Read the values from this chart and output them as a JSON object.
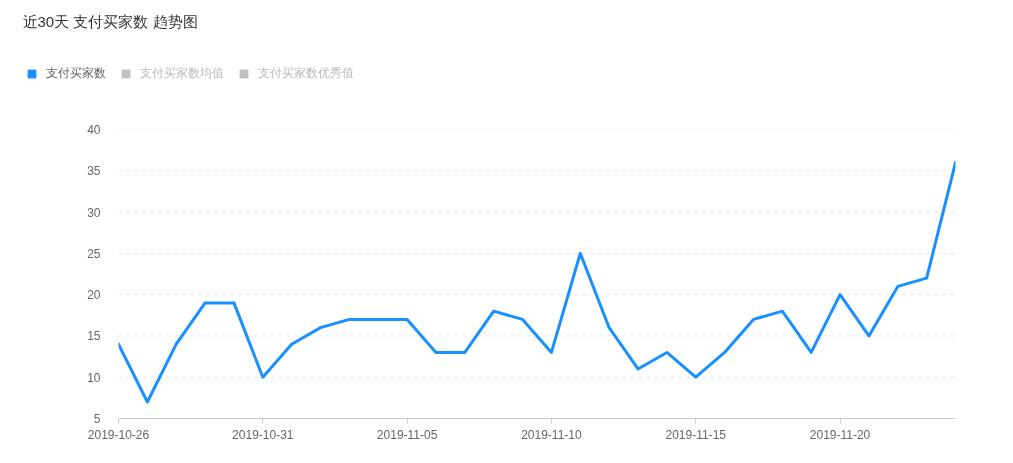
{
  "chart_data": {
    "type": "line",
    "title": "近30天 支付买家数 趋势图",
    "x": [
      "2019-10-26",
      "2019-10-27",
      "2019-10-28",
      "2019-10-29",
      "2019-10-30",
      "2019-10-31",
      "2019-11-01",
      "2019-11-02",
      "2019-11-03",
      "2019-11-04",
      "2019-11-05",
      "2019-11-06",
      "2019-11-07",
      "2019-11-08",
      "2019-11-09",
      "2019-11-10",
      "2019-11-11",
      "2019-11-12",
      "2019-11-13",
      "2019-11-14",
      "2019-11-15",
      "2019-11-16",
      "2019-11-17",
      "2019-11-18",
      "2019-11-19",
      "2019-11-20",
      "2019-11-21",
      "2019-11-22",
      "2019-11-23",
      "2019-11-24"
    ],
    "series": [
      {
        "name": "支付买家数",
        "color": "#1890ff",
        "values": [
          14,
          7,
          14,
          19,
          19,
          10,
          14,
          16,
          17,
          17,
          17,
          13,
          13,
          18,
          17,
          13,
          25,
          16,
          11,
          13,
          10,
          13,
          17,
          18,
          13,
          20,
          15,
          21,
          22,
          36
        ]
      },
      {
        "name": "支付买家数均值",
        "color": "#c0c0c0",
        "values": [
          null,
          null,
          null,
          null,
          null,
          null,
          null,
          null,
          null,
          null,
          null,
          null,
          null,
          null,
          null,
          null,
          null,
          null,
          null,
          null,
          null,
          null,
          null,
          null,
          null,
          null,
          null,
          null,
          null,
          null
        ]
      },
      {
        "name": "支付买家数优秀值",
        "color": "#c0c0c0",
        "values": [
          null,
          null,
          null,
          null,
          null,
          null,
          null,
          null,
          null,
          null,
          null,
          null,
          null,
          null,
          null,
          null,
          null,
          null,
          null,
          null,
          null,
          null,
          null,
          null,
          null,
          null,
          null,
          null,
          null,
          null
        ]
      }
    ],
    "xlim": [
      "2019-10-26",
      "2019-11-24"
    ],
    "xticks": [
      "2019-10-26",
      "2019-10-31",
      "2019-11-05",
      "2019-11-10",
      "2019-11-15",
      "2019-11-20"
    ],
    "ylim": [
      5,
      40
    ],
    "yticks": [
      5,
      10,
      15,
      20,
      25,
      30,
      35,
      40
    ],
    "grid": "y",
    "legend": "top left",
    "line_style": "solid"
  }
}
